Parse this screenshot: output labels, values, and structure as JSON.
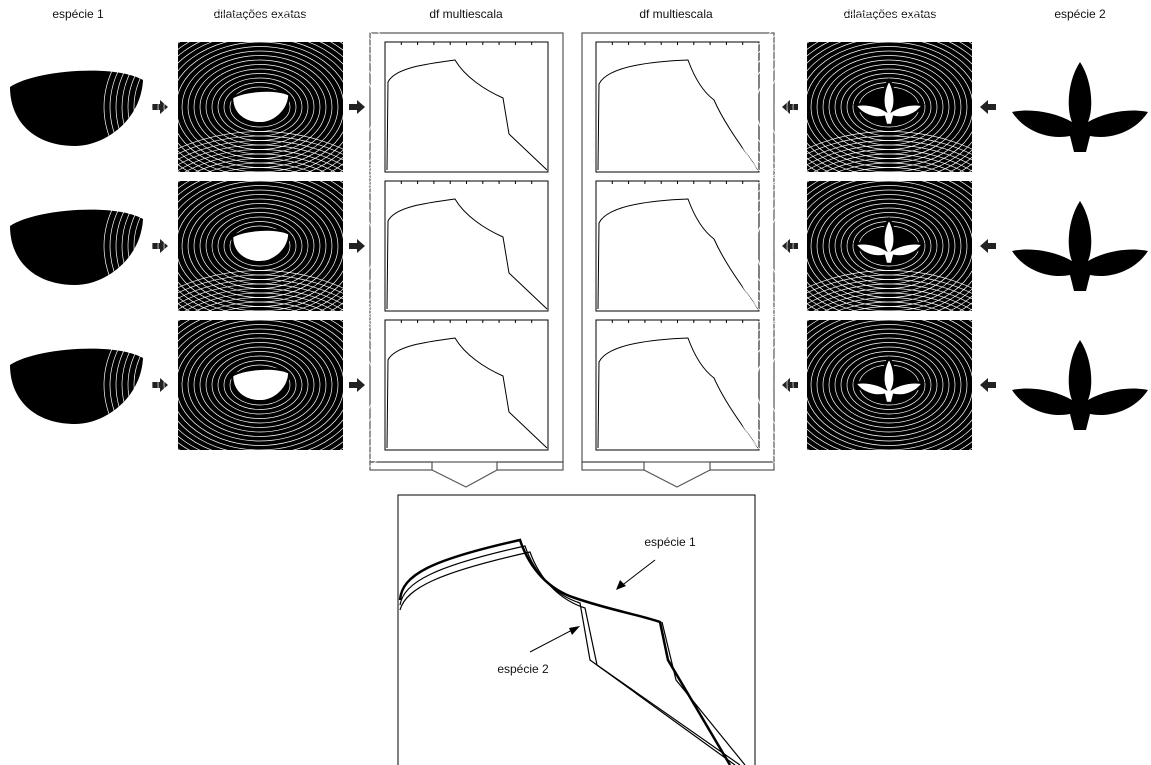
{
  "headers": [
    "espécie 1",
    "dilatações exatas",
    "df multiescala",
    "df multiescala",
    "dilatações exatas",
    "espécie 2"
  ],
  "annotations": [
    "espécie 1",
    "espécie 2"
  ]
}
